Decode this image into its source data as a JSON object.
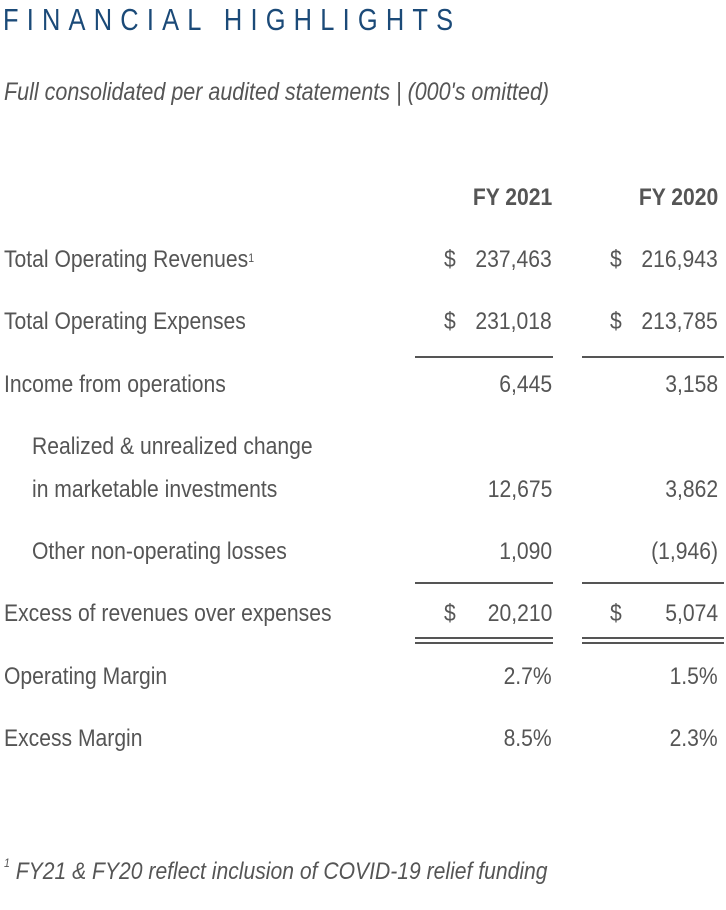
{
  "title": "FINANCIAL HIGHLIGHTS",
  "subtitle": "Full consolidated per audited statements | (000's omitted)",
  "columns": [
    "FY 2021",
    "FY 2020"
  ],
  "rows": [
    {
      "label": "Total Operating Revenues",
      "sup": "1",
      "fy2021": "237,463",
      "fy2020": "216,943",
      "dollar": true
    },
    {
      "label": "Total Operating Expenses",
      "fy2021": "231,018",
      "fy2020": "213,785",
      "dollar": true
    },
    {
      "label": "Income from operations",
      "fy2021": "6,445",
      "fy2020": "3,158"
    },
    {
      "label": "Realized & unrealized change",
      "label2": "in marketable investments",
      "fy2021": "12,675",
      "fy2020": "3,862"
    },
    {
      "label": "Other non-operating losses",
      "fy2021": "1,090",
      "fy2020": "(1,946)"
    },
    {
      "label": "Excess of revenues over expenses",
      "fy2021": "20,210",
      "fy2020": "5,074",
      "dollar": true
    },
    {
      "label": "Operating Margin",
      "fy2021": "2.7%",
      "fy2020": "1.5%"
    },
    {
      "label": "Excess Margin",
      "fy2021": "8.5%",
      "fy2020": "2.3%"
    }
  ],
  "currency_symbol": "$",
  "footnote": {
    "marker": "1",
    "text": "FY21 & FY20 reflect inclusion of COVID-19 relief funding"
  },
  "colors": {
    "title": "#1b4a78",
    "text": "#555555"
  }
}
